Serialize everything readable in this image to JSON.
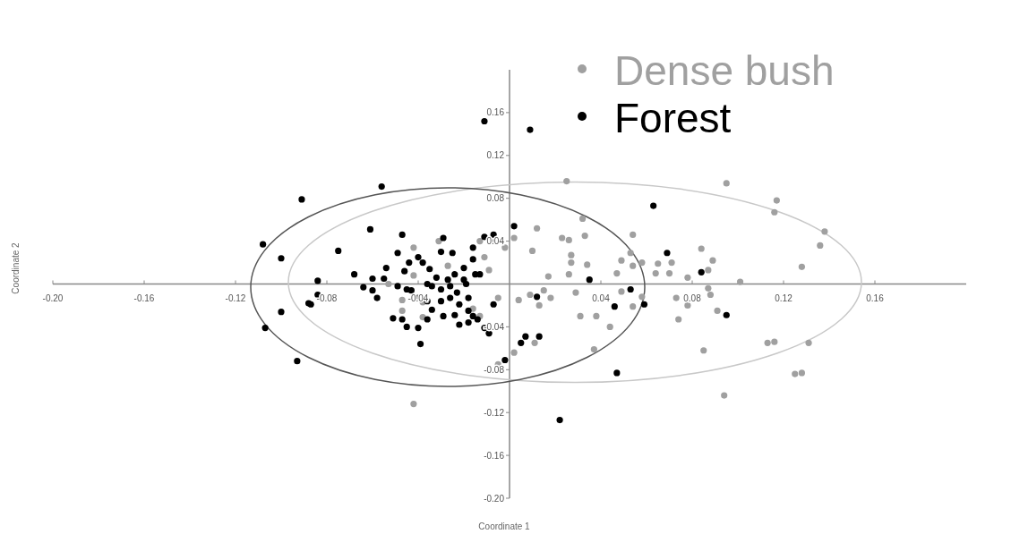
{
  "chart_data": {
    "type": "scatter",
    "xlabel": "Coordinate 1",
    "ylabel": "Coordinate 2",
    "xlim": [
      -0.2,
      0.2
    ],
    "ylim": [
      -0.2,
      0.2
    ],
    "xticks": [
      {
        "value": -0.2,
        "label": "-0.20"
      },
      {
        "value": -0.16,
        "label": "-0.16"
      },
      {
        "value": -0.12,
        "label": "-0.12"
      },
      {
        "value": -0.08,
        "label": "-0.08"
      },
      {
        "value": -0.04,
        "label": "-0.04"
      },
      {
        "value": 0.04,
        "label": "0.04"
      },
      {
        "value": 0.08,
        "label": "0.08"
      },
      {
        "value": 0.12,
        "label": "0.12"
      },
      {
        "value": 0.16,
        "label": "0.16"
      }
    ],
    "yticks": [
      {
        "value": 0.16,
        "label": "0.16"
      },
      {
        "value": 0.12,
        "label": "0.12"
      },
      {
        "value": 0.08,
        "label": "0.08"
      },
      {
        "value": 0.04,
        "label": "0.04"
      },
      {
        "value": -0.04,
        "label": "-0.04"
      },
      {
        "value": -0.08,
        "label": "-0.08"
      },
      {
        "value": -0.12,
        "label": "-0.12"
      },
      {
        "value": -0.16,
        "label": "-0.16"
      },
      {
        "value": -0.2,
        "label": "-0.20"
      }
    ],
    "legend": "top",
    "marker": "circle",
    "grid": false,
    "series": [
      {
        "name": "Dense bush",
        "color": "#a0a0a0",
        "x": [
          0.025,
          0.095,
          0.032,
          0.012,
          0.002,
          0.023,
          0.026,
          0.033,
          0.054,
          0.01,
          0.027,
          0.053,
          0.084,
          0.027,
          0.034,
          0.049,
          0.054,
          0.058,
          0.065,
          0.071,
          0.089,
          0.017,
          0.026,
          0.047,
          0.064,
          0.07,
          0.078,
          0.087,
          -0.002,
          0.004,
          0.009,
          0.015,
          0.018,
          0.013,
          0.029,
          0.031,
          0.038,
          0.044,
          0.049,
          0.054,
          0.058,
          0.073,
          0.078,
          0.074,
          0.087,
          0.088,
          0.091,
          0.085,
          0.011,
          0.002,
          0.037,
          0.094,
          0.117,
          0.116,
          0.138,
          0.136,
          0.128,
          0.101,
          0.113,
          0.116,
          0.131,
          0.125,
          0.128,
          -0.042,
          -0.031,
          -0.027,
          -0.042,
          -0.047,
          -0.038,
          -0.047,
          -0.038,
          -0.016,
          -0.013,
          -0.011,
          -0.009,
          -0.013,
          -0.005,
          -0.053,
          -0.009,
          -0.005,
          -0.042
        ],
        "values": [
          0.096,
          0.094,
          0.061,
          0.052,
          0.043,
          0.043,
          0.041,
          0.045,
          0.046,
          0.031,
          0.027,
          0.029,
          0.033,
          0.02,
          0.018,
          0.022,
          0.017,
          0.02,
          0.019,
          0.02,
          0.022,
          0.007,
          0.009,
          0.01,
          0.01,
          0.01,
          0.006,
          0.013,
          0.034,
          -0.015,
          -0.01,
          -0.006,
          -0.013,
          -0.02,
          -0.008,
          -0.03,
          -0.03,
          -0.04,
          -0.007,
          -0.021,
          -0.012,
          -0.013,
          -0.02,
          -0.033,
          -0.004,
          -0.01,
          -0.025,
          -0.062,
          -0.055,
          -0.064,
          -0.061,
          -0.104,
          0.078,
          0.067,
          0.049,
          0.036,
          0.016,
          0.002,
          -0.055,
          -0.054,
          -0.055,
          -0.084,
          -0.083,
          0.034,
          0.04,
          0.017,
          0.008,
          -0.015,
          -0.017,
          -0.025,
          -0.031,
          -0.023,
          -0.03,
          0.025,
          0.013,
          0.04,
          -0.013,
          0,
          -0.046,
          -0.075,
          -0.112
        ]
      },
      {
        "name": "Forest",
        "color": "#000000",
        "x": [
          -0.011,
          0.009,
          -0.091,
          -0.056,
          -0.108,
          -0.1,
          -0.075,
          -0.061,
          -0.047,
          -0.029,
          -0.049,
          -0.03,
          -0.025,
          -0.04,
          -0.044,
          -0.038,
          -0.054,
          -0.046,
          -0.035,
          -0.068,
          -0.055,
          -0.06,
          -0.084,
          -0.064,
          -0.06,
          -0.058,
          -0.084,
          -0.088,
          -0.1,
          -0.107,
          -0.093,
          -0.051,
          -0.047,
          -0.045,
          -0.04,
          -0.039,
          -0.036,
          -0.034,
          -0.029,
          -0.049,
          -0.045,
          -0.043,
          -0.04,
          -0.036,
          -0.036,
          -0.034,
          -0.032,
          -0.03,
          -0.03,
          -0.027,
          -0.026,
          -0.026,
          -0.024,
          -0.023,
          -0.022,
          -0.02,
          -0.02,
          -0.019,
          -0.018,
          -0.018,
          -0.016,
          -0.016,
          -0.015,
          -0.013,
          -0.018,
          -0.016,
          -0.014,
          -0.011,
          -0.007,
          -0.006,
          -0.007,
          -0.011,
          -0.009,
          -0.002,
          -0.022,
          -0.024,
          -0.087,
          0.063,
          0.002,
          0.069,
          0.084,
          0.035,
          0.012,
          0.053,
          0.046,
          0.059,
          0.095,
          0.007,
          0.005,
          0.013,
          0.047,
          0.022
        ],
        "values": [
          0.152,
          0.144,
          0.079,
          0.091,
          0.037,
          0.024,
          0.031,
          0.051,
          0.046,
          0.043,
          0.029,
          0.03,
          0.029,
          0.025,
          0.02,
          0.02,
          0.015,
          0.012,
          0.014,
          0.009,
          0.005,
          0.005,
          0.003,
          -0.003,
          -0.006,
          -0.013,
          -0.01,
          -0.018,
          -0.026,
          -0.041,
          -0.072,
          -0.032,
          -0.033,
          -0.04,
          -0.041,
          -0.056,
          -0.033,
          -0.024,
          -0.03,
          -0.002,
          -0.005,
          -0.006,
          -0.013,
          -0.016,
          0,
          -0.002,
          0.006,
          -0.005,
          -0.016,
          0.004,
          -0.002,
          -0.013,
          0.009,
          -0.008,
          -0.019,
          0.004,
          0.015,
          0,
          -0.013,
          -0.025,
          0.023,
          0.034,
          0.009,
          0.009,
          -0.036,
          -0.03,
          -0.033,
          0.044,
          0.046,
          0.04,
          -0.019,
          -0.041,
          -0.046,
          -0.071,
          -0.038,
          -0.029,
          -0.019,
          0.073,
          0.054,
          0.029,
          0.011,
          0.004,
          -0.012,
          -0.005,
          -0.021,
          -0.019,
          -0.029,
          -0.049,
          -0.055,
          -0.049,
          -0.083,
          -0.127
        ]
      }
    ]
  }
}
